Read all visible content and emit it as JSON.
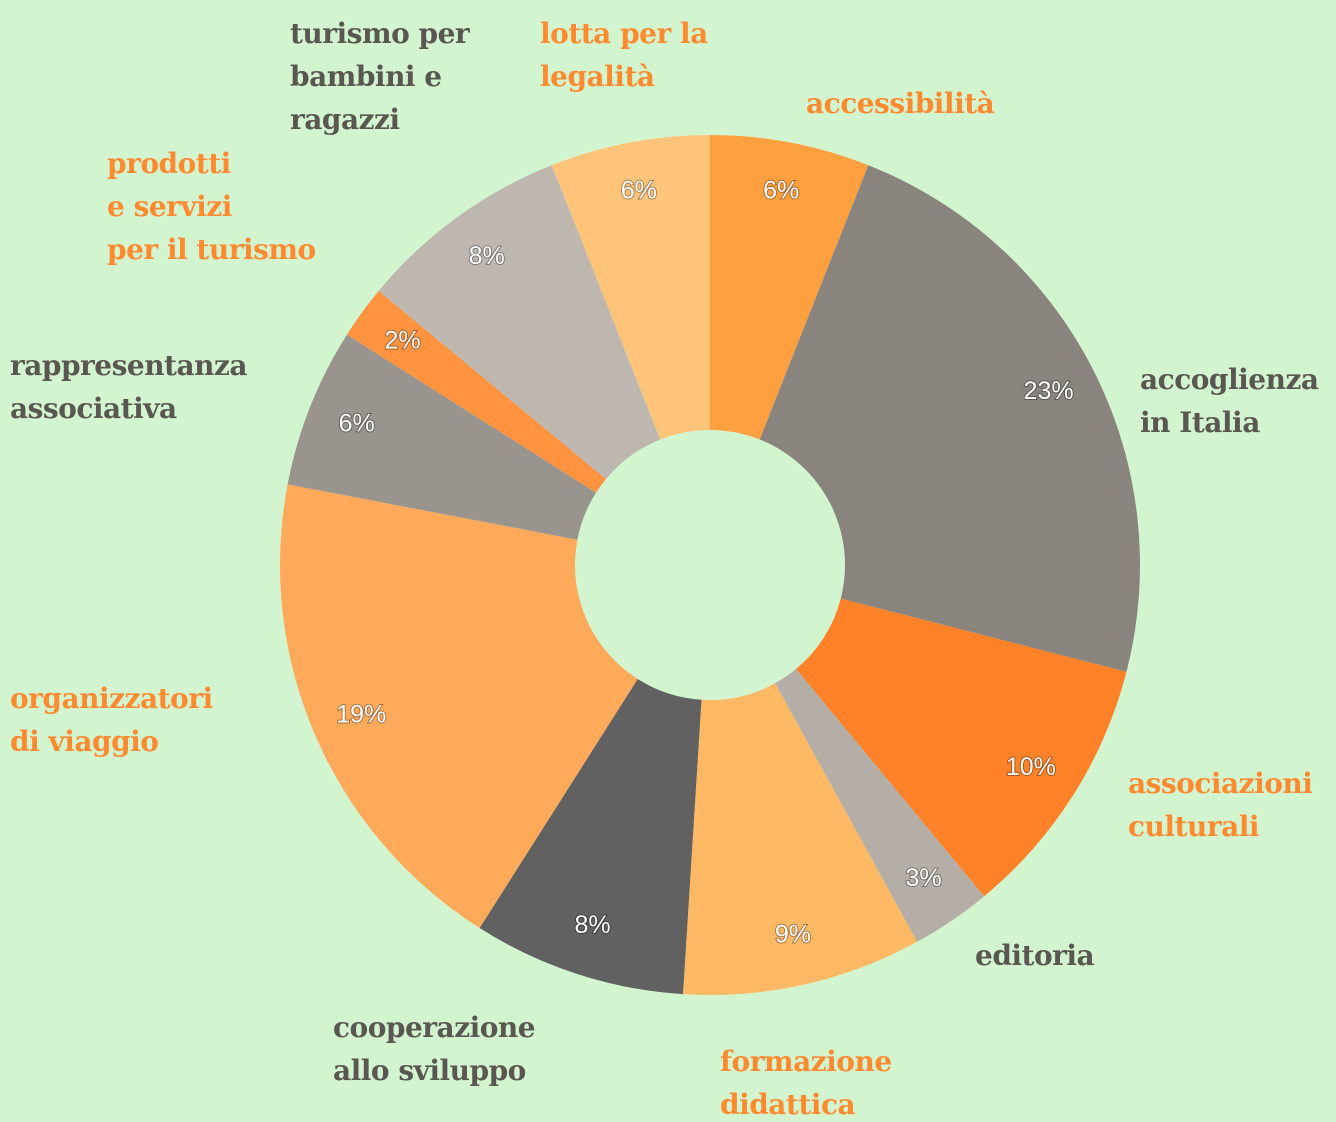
{
  "chart_data": {
    "type": "donut",
    "categories": [
      "accessibilità",
      "accoglienza\nin Italia",
      "associazioni\nculturali",
      "editoria",
      "formazione\ndidattica",
      "cooperazione\nallo sviluppo",
      "organizzatori\ndi viaggio",
      "rappresentanza\nassociativa",
      "prodotti\ne servizi\nper il turismo",
      "turismo per\nbambini e\nragazzi",
      "lotta per la\nlegalità"
    ],
    "values": [
      6,
      23,
      10,
      3,
      9,
      8,
      19,
      6,
      2,
      8,
      6
    ],
    "value_labels": [
      "6%",
      "23%",
      "10%",
      "3%",
      "9%",
      "8%",
      "19%",
      "6%",
      "2%",
      "8%",
      "6%"
    ],
    "colors": [
      "#ffa040",
      "#8a847e",
      "#ff8228",
      "#b5aea6",
      "#ffb964",
      "#616161",
      "#ffaa5a",
      "#99948d",
      "#ff9340",
      "#bdb7b0",
      "#ffc37a"
    ]
  }
}
